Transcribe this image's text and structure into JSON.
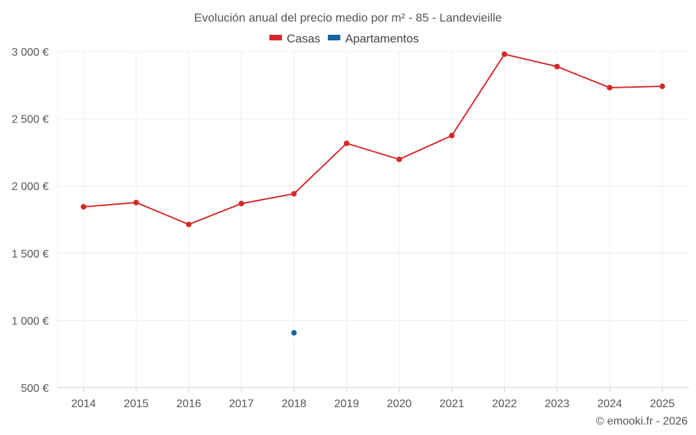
{
  "chart_data": {
    "type": "line",
    "title": "Evolución anual del precio medio por m² - 85 - Landevieille",
    "categories": [
      "2014",
      "2015",
      "2016",
      "2017",
      "2018",
      "2019",
      "2020",
      "2021",
      "2022",
      "2023",
      "2024",
      "2025"
    ],
    "series": [
      {
        "name": "Casas",
        "color": "#d62728",
        "values": [
          1845,
          1877,
          1714,
          1869,
          1942,
          2317,
          2198,
          2375,
          2980,
          2888,
          2731,
          2741
        ]
      },
      {
        "name": "Apartamentos",
        "color": "#1565a0",
        "values": [
          null,
          null,
          null,
          null,
          908,
          null,
          null,
          null,
          null,
          null,
          null,
          null
        ]
      }
    ],
    "ylim": [
      500,
      3000
    ],
    "yticks": [
      500,
      1000,
      1500,
      2000,
      2500,
      3000
    ],
    "ytick_labels": [
      "500 €",
      "1 000 €",
      "1 500 €",
      "2 000 €",
      "2 500 €",
      "3 000 €"
    ],
    "grid": true,
    "legend_position": "top-center"
  },
  "credit": "© emooki.fr - 2026"
}
